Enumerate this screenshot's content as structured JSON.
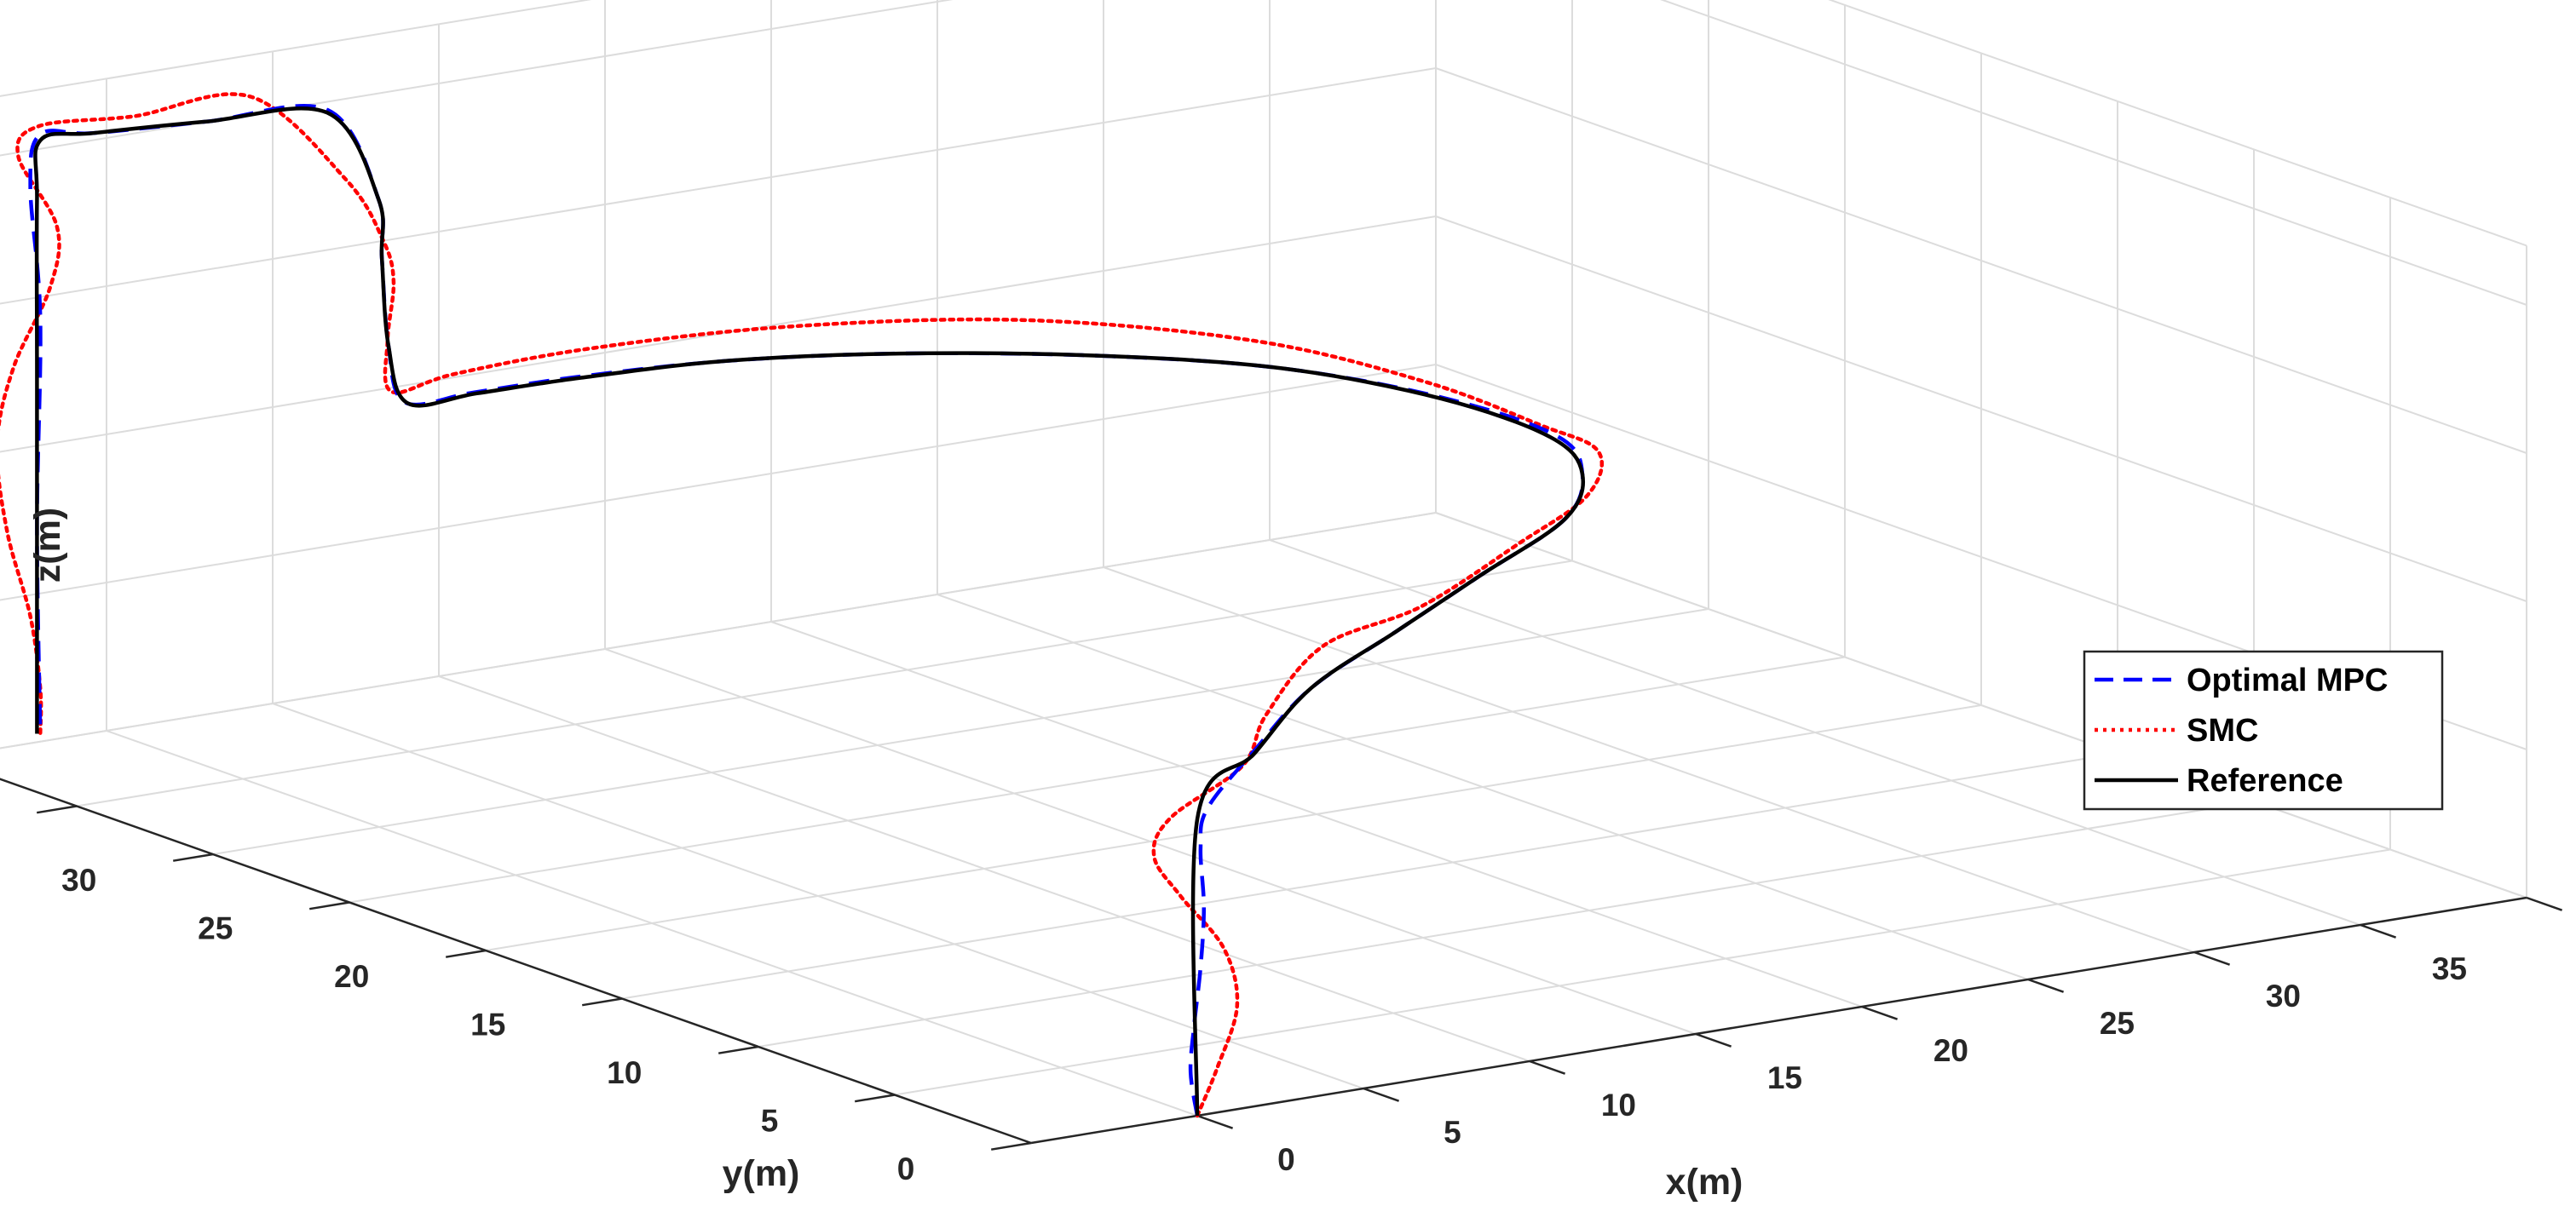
{
  "chart_data": {
    "type": "line3d",
    "title": "",
    "xlabel": "x(m)",
    "ylabel": "y(m)",
    "zlabel": "z(m)",
    "xlim": [
      -5,
      40
    ],
    "ylim": [
      0,
      40
    ],
    "zlim": [
      0,
      22
    ],
    "xticks": [
      0,
      5,
      10,
      15,
      20,
      25,
      30,
      35,
      40
    ],
    "yticks": [
      0,
      5,
      10,
      15,
      20,
      25,
      30,
      35,
      40
    ],
    "zticks": [
      0,
      5,
      10,
      15,
      20
    ],
    "grid": true,
    "legend_position": "right",
    "legend": [
      {
        "label": "Optimal MPC",
        "color": "#0000ff",
        "style": "dashed"
      },
      {
        "label": "SMC",
        "color": "#ff0000",
        "style": "dotted"
      },
      {
        "label": "Reference",
        "color": "#000000",
        "style": "solid"
      }
    ],
    "series": [
      {
        "name": "Reference",
        "color": "#000000",
        "style": "solid",
        "points": [
          [
            0,
            0,
            0
          ],
          [
            0,
            0,
            10
          ],
          [
            5,
            4,
            10
          ],
          [
            10,
            8,
            10
          ],
          [
            15,
            11,
            10
          ],
          [
            20,
            14,
            10
          ],
          [
            25,
            17,
            10
          ],
          [
            28,
            20,
            10
          ],
          [
            29.5,
            23,
            10
          ],
          [
            29.5,
            27,
            10
          ],
          [
            28,
            31,
            10
          ],
          [
            25,
            34,
            10
          ],
          [
            21,
            36.5,
            10
          ],
          [
            17,
            38,
            10
          ],
          [
            13,
            38.5,
            10
          ],
          [
            10,
            38.6,
            10
          ],
          [
            8,
            38.7,
            10
          ],
          [
            7.5,
            38.8,
            12
          ],
          [
            7.3,
            38.8,
            15
          ],
          [
            7.2,
            38.8,
            17
          ],
          [
            6,
            39.2,
            20
          ],
          [
            3,
            40,
            20
          ],
          [
            0,
            40.5,
            20
          ],
          [
            -1.5,
            40.6,
            20
          ],
          [
            -1.6,
            40.6,
            18
          ],
          [
            -1.6,
            40.6,
            12
          ],
          [
            -1.6,
            40.6,
            6
          ],
          [
            -1.6,
            40.6,
            0
          ]
        ]
      },
      {
        "name": "Optimal MPC",
        "color": "#0000ff",
        "style": "dashed",
        "points": [
          [
            0,
            0,
            0
          ],
          [
            -0.2,
            0,
            1.5
          ],
          [
            -0.1,
            0,
            3
          ],
          [
            0.1,
            0,
            5
          ],
          [
            0.2,
            0,
            7
          ],
          [
            0.1,
            0,
            9
          ],
          [
            0.3,
            0,
            10.3
          ],
          [
            5,
            4,
            10.1
          ],
          [
            10,
            8,
            10
          ],
          [
            15,
            11,
            10
          ],
          [
            20,
            14,
            10
          ],
          [
            25,
            17,
            10
          ],
          [
            28,
            20,
            10
          ],
          [
            29.7,
            23,
            10
          ],
          [
            29.6,
            27,
            10
          ],
          [
            28,
            31,
            10
          ],
          [
            25,
            34,
            10
          ],
          [
            21,
            36.5,
            10
          ],
          [
            17,
            38,
            10
          ],
          [
            13,
            38.6,
            10
          ],
          [
            10,
            38.7,
            10
          ],
          [
            8,
            38.8,
            10
          ],
          [
            7.5,
            38.8,
            12
          ],
          [
            7.3,
            38.8,
            15
          ],
          [
            7.2,
            38.8,
            17
          ],
          [
            6,
            39.2,
            20.1
          ],
          [
            3,
            40,
            20
          ],
          [
            0,
            40.5,
            20
          ],
          [
            -1.5,
            40.6,
            20.2
          ],
          [
            -1.8,
            40.6,
            18.5
          ],
          [
            -1.5,
            40.6,
            14
          ],
          [
            -1.6,
            40.6,
            7
          ],
          [
            -1.5,
            40.6,
            0
          ]
        ]
      },
      {
        "name": "SMC",
        "color": "#ff0000",
        "style": "dotted",
        "points": [
          [
            0,
            0,
            0
          ],
          [
            0.6,
            0,
            1.5
          ],
          [
            1.2,
            0,
            3.5
          ],
          [
            0.8,
            0,
            5.5
          ],
          [
            -0.5,
            0,
            7.5
          ],
          [
            -1.3,
            0,
            9
          ],
          [
            -0.8,
            0,
            10.2
          ],
          [
            3,
            2,
            10.6
          ],
          [
            7,
            6,
            10.3
          ],
          [
            12,
            10,
            10.4
          ],
          [
            17,
            12.5,
            10
          ],
          [
            22,
            15,
            10.4
          ],
          [
            26.5,
            18,
            10.2
          ],
          [
            29.3,
            21,
            10.2
          ],
          [
            30,
            24,
            10
          ],
          [
            29.8,
            28,
            10.2
          ],
          [
            28,
            32,
            10.6
          ],
          [
            24,
            35.5,
            10.9
          ],
          [
            19,
            38,
            10.8
          ],
          [
            14,
            39.2,
            10.6
          ],
          [
            10,
            39.4,
            10.4
          ],
          [
            8,
            39.3,
            10.2
          ],
          [
            7.8,
            39.2,
            12
          ],
          [
            7.9,
            39.1,
            14
          ],
          [
            7.5,
            39.0,
            15.5
          ],
          [
            6.8,
            39.5,
            17.5
          ],
          [
            4.5,
            40.2,
            20.5
          ],
          [
            1.5,
            40.8,
            20.2
          ],
          [
            -1.2,
            41,
            20.3
          ],
          [
            -2,
            40.8,
            19.5
          ],
          [
            -1,
            40.6,
            17
          ],
          [
            -1.2,
            40.6,
            15
          ],
          [
            -2.3,
            40.6,
            12.5
          ],
          [
            -2.8,
            40.6,
            10
          ],
          [
            -2.5,
            40.6,
            7
          ],
          [
            -1.8,
            40.6,
            4
          ],
          [
            -1.5,
            40.6,
            1.5
          ],
          [
            -1.5,
            40.6,
            0
          ]
        ]
      }
    ]
  }
}
